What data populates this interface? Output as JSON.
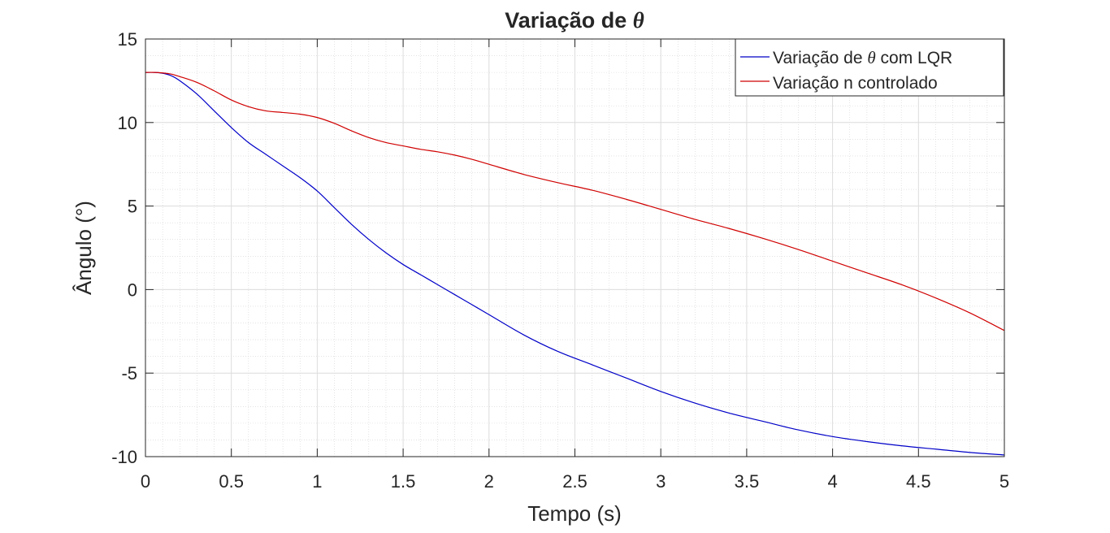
{
  "figure": {
    "background": "#ffffff"
  },
  "chart_data": {
    "type": "line",
    "title_prefix": "Variação de ",
    "title_symbol": "θ",
    "xlabel": "Tempo (s)",
    "ylabel": "Ângulo (°)",
    "xlim": [
      0,
      5
    ],
    "ylim": [
      -10,
      15
    ],
    "xticks": [
      0,
      0.5,
      1,
      1.5,
      2,
      2.5,
      3,
      3.5,
      4,
      4.5,
      5
    ],
    "xtick_labels": [
      "0",
      "0.5",
      "1",
      "1.5",
      "2",
      "2.5",
      "3",
      "3.5",
      "4",
      "4.5",
      "5"
    ],
    "yticks": [
      -10,
      -5,
      0,
      5,
      10,
      15
    ],
    "ytick_labels": [
      "-10",
      "-5",
      "0",
      "5",
      "10",
      "15"
    ],
    "grid": true,
    "minor_grid": true,
    "legend_position": "top-right",
    "series": [
      {
        "legend_prefix": "Variação de ",
        "legend_symbol": "θ",
        "legend_suffix": " com LQR",
        "color": "#0000c8",
        "x": [
          0,
          0.05,
          0.1,
          0.15,
          0.2,
          0.3,
          0.4,
          0.5,
          0.6,
          0.7,
          0.8,
          0.9,
          1.0,
          1.1,
          1.2,
          1.3,
          1.4,
          1.5,
          1.6,
          1.7,
          1.8,
          1.9,
          2.0,
          2.2,
          2.4,
          2.6,
          2.8,
          3.0,
          3.2,
          3.4,
          3.6,
          3.8,
          4.0,
          4.2,
          4.4,
          4.6,
          4.8,
          5.0
        ],
        "y": [
          13.0,
          13.0,
          12.95,
          12.8,
          12.5,
          11.7,
          10.7,
          9.7,
          8.8,
          8.1,
          7.4,
          6.7,
          5.9,
          4.9,
          3.9,
          3.0,
          2.2,
          1.5,
          0.9,
          0.3,
          -0.3,
          -0.9,
          -1.5,
          -2.7,
          -3.7,
          -4.5,
          -5.3,
          -6.1,
          -6.8,
          -7.4,
          -7.9,
          -8.4,
          -8.8,
          -9.1,
          -9.35,
          -9.55,
          -9.75,
          -9.9
        ]
      },
      {
        "legend_text": "Variação n controlado",
        "color": "#d00000",
        "x": [
          0,
          0.05,
          0.1,
          0.15,
          0.2,
          0.3,
          0.4,
          0.5,
          0.6,
          0.7,
          0.8,
          0.9,
          1.0,
          1.1,
          1.2,
          1.3,
          1.4,
          1.5,
          1.6,
          1.7,
          1.8,
          1.9,
          2.0,
          2.2,
          2.4,
          2.6,
          2.8,
          3.0,
          3.2,
          3.4,
          3.6,
          3.8,
          4.0,
          4.2,
          4.4,
          4.6,
          4.8,
          5.0
        ],
        "y": [
          13.0,
          13.0,
          12.97,
          12.9,
          12.75,
          12.4,
          11.9,
          11.35,
          10.95,
          10.7,
          10.6,
          10.5,
          10.3,
          9.95,
          9.5,
          9.1,
          8.8,
          8.6,
          8.4,
          8.25,
          8.05,
          7.8,
          7.5,
          6.9,
          6.4,
          5.95,
          5.4,
          4.8,
          4.2,
          3.65,
          3.05,
          2.4,
          1.7,
          1.0,
          0.3,
          -0.5,
          -1.4,
          -2.45
        ]
      }
    ]
  }
}
